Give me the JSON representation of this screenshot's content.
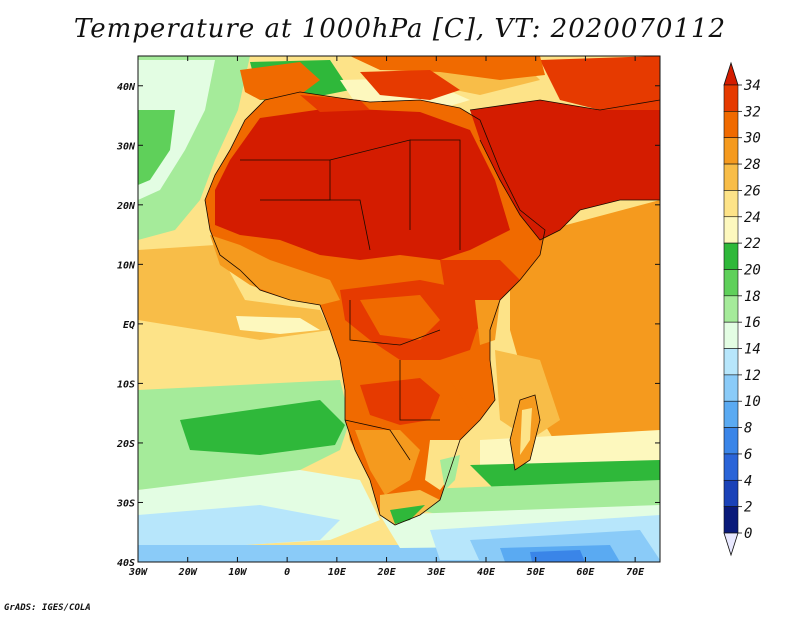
{
  "title": "Temperature at 1000hPa [C], VT: 2020070112",
  "credit": "GrADS: IGES/COLA",
  "map": {
    "lon_range": [
      -30,
      75
    ],
    "lat_range": [
      -40,
      45
    ],
    "lon_ticks": [
      "30W",
      "20W",
      "10W",
      "0",
      "10E",
      "20E",
      "30E",
      "40E",
      "50E",
      "60E",
      "70E"
    ],
    "lat_ticks": [
      "40N",
      "30N",
      "20N",
      "10N",
      "EQ",
      "10S",
      "20S",
      "30S",
      "40S"
    ]
  },
  "colorbar": {
    "labels": [
      "34",
      "32",
      "30",
      "28",
      "26",
      "24",
      "22",
      "20",
      "18",
      "16",
      "14",
      "12",
      "10",
      "8",
      "6",
      "4",
      "2",
      "0"
    ],
    "colors": [
      "#d41c00",
      "#e63a00",
      "#f06a00",
      "#f59a1e",
      "#f8bd48",
      "#fde388",
      "#fdf8be",
      "#2fb83a",
      "#5fd05a",
      "#a5eb9a",
      "#e3fde3",
      "#b7e6fb",
      "#8acbf8",
      "#5aaaf2",
      "#3a85e8",
      "#2a64d8",
      "#1a42b8",
      "#0a1a7a",
      "#e8e8ff"
    ]
  }
}
